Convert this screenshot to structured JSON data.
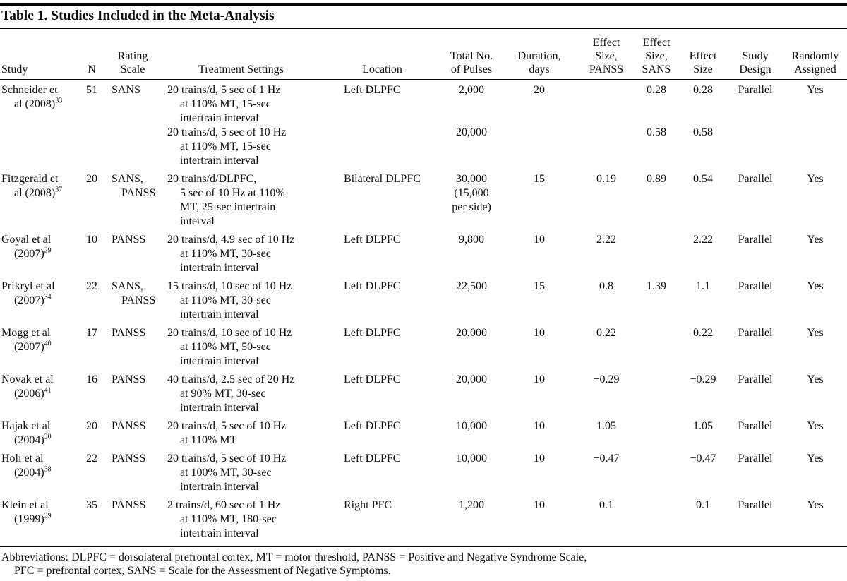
{
  "title": "Table 1. Studies Included in the Meta-Analysis",
  "columns": [
    {
      "key": "study",
      "label_lines": [
        "Study"
      ]
    },
    {
      "key": "n",
      "label_lines": [
        "N"
      ]
    },
    {
      "key": "scale",
      "label_lines": [
        "Rating",
        "Scale"
      ]
    },
    {
      "key": "settings",
      "label_lines": [
        "Treatment Settings"
      ]
    },
    {
      "key": "location",
      "label_lines": [
        "Location"
      ]
    },
    {
      "key": "pulses",
      "label_lines": [
        "Total No.",
        "of Pulses"
      ]
    },
    {
      "key": "duration",
      "label_lines": [
        "Duration,",
        "days"
      ]
    },
    {
      "key": "es_panss",
      "label_lines": [
        "Effect",
        "Size,",
        "PANSS"
      ]
    },
    {
      "key": "es_sans",
      "label_lines": [
        "Effect",
        "Size,",
        "SANS"
      ]
    },
    {
      "key": "es",
      "label_lines": [
        "Effect",
        "Size"
      ]
    },
    {
      "key": "design",
      "label_lines": [
        "Study",
        "Design"
      ]
    },
    {
      "key": "assigned",
      "label_lines": [
        "Randomly",
        "Assigned"
      ]
    }
  ],
  "rows": [
    {
      "study": [
        "Schneider et",
        "al (2008)"
      ],
      "ref": "33",
      "n": "51",
      "scale": [
        "SANS"
      ],
      "settings": [
        "20 trains/d, 5 sec of 1 Hz",
        "at 110% MT, 15-sec",
        "intertrain interval"
      ],
      "location": "Left DLPFC",
      "pulses": [
        "2,000"
      ],
      "duration": "20",
      "es_panss": "",
      "es_sans": "0.28",
      "es": "0.28",
      "design": "Parallel",
      "assigned": "Yes",
      "tight": true
    },
    {
      "study": [],
      "ref": "",
      "n": "",
      "scale": [],
      "settings": [
        "20 trains/d, 5 sec of 10 Hz",
        "at 110% MT, 15-sec",
        "intertrain interval"
      ],
      "location": "",
      "pulses": [
        "20,000"
      ],
      "duration": "",
      "es_panss": "",
      "es_sans": "0.58",
      "es": "0.58",
      "design": "",
      "assigned": ""
    },
    {
      "study": [
        "Fitzgerald et",
        "al (2008)"
      ],
      "ref": "37",
      "n": "20",
      "scale": [
        "SANS,",
        "PANSS"
      ],
      "settings": [
        "20 trains/d/DLPFC,",
        "5 sec of 10 Hz at 110%",
        "MT, 25-sec intertrain",
        "interval"
      ],
      "location": "Bilateral DLPFC",
      "pulses": [
        "30,000",
        "(15,000",
        "per side)"
      ],
      "duration": "15",
      "es_panss": "0.19",
      "es_sans": "0.89",
      "es": "0.54",
      "design": "Parallel",
      "assigned": "Yes"
    },
    {
      "study": [
        "Goyal et al",
        "(2007)"
      ],
      "ref": "29",
      "n": "10",
      "scale": [
        "PANSS"
      ],
      "settings": [
        "20 trains/d, 4.9 sec of 10 Hz",
        "at 110% MT, 30-sec",
        "intertrain interval"
      ],
      "location": "Left DLPFC",
      "pulses": [
        "9,800"
      ],
      "duration": "10",
      "es_panss": "2.22",
      "es_sans": "",
      "es": "2.22",
      "design": "Parallel",
      "assigned": "Yes"
    },
    {
      "study": [
        "Prikryl et al",
        "(2007)"
      ],
      "ref": "34",
      "n": "22",
      "scale": [
        "SANS,",
        "PANSS"
      ],
      "settings": [
        "15 trains/d, 10 sec of 10 Hz",
        "at 110% MT, 30-sec",
        "intertrain interval"
      ],
      "location": "Left DLPFC",
      "pulses": [
        "22,500"
      ],
      "duration": "15",
      "es_panss": "0.8",
      "es_sans": "1.39",
      "es": "1.1",
      "design": "Parallel",
      "assigned": "Yes"
    },
    {
      "study": [
        "Mogg et al",
        "(2007)"
      ],
      "ref": "40",
      "n": "17",
      "scale": [
        "PANSS"
      ],
      "settings": [
        "20 trains/d, 10 sec of 10 Hz",
        "at 110% MT, 50-sec",
        "intertrain interval"
      ],
      "location": "Left DLPFC",
      "pulses": [
        "20,000"
      ],
      "duration": "10",
      "es_panss": "0.22",
      "es_sans": "",
      "es": "0.22",
      "design": "Parallel",
      "assigned": "Yes"
    },
    {
      "study": [
        "Novak et al",
        "(2006)"
      ],
      "ref": "41",
      "n": "16",
      "scale": [
        "PANSS"
      ],
      "settings": [
        "40 trains/d, 2.5 sec of 20 Hz",
        "at 90% MT, 30-sec",
        "intertrain interval"
      ],
      "location": "Left DLPFC",
      "pulses": [
        "20,000"
      ],
      "duration": "10",
      "es_panss": "−0.29",
      "es_sans": "",
      "es": "−0.29",
      "design": "Parallel",
      "assigned": "Yes"
    },
    {
      "study": [
        "Hajak et al",
        "(2004)"
      ],
      "ref": "30",
      "n": "20",
      "scale": [
        "PANSS"
      ],
      "settings": [
        "20 trains/d, 5 sec of 10 Hz",
        "at 110% MT"
      ],
      "location": "Left DLPFC",
      "pulses": [
        "10,000"
      ],
      "duration": "10",
      "es_panss": "1.05",
      "es_sans": "",
      "es": "1.05",
      "design": "Parallel",
      "assigned": "Yes"
    },
    {
      "study": [
        "Holi et al",
        "(2004)"
      ],
      "ref": "38",
      "n": "22",
      "scale": [
        "PANSS"
      ],
      "settings": [
        "20 trains/d, 5 sec of 10 Hz",
        "at 100% MT, 30-sec",
        "intertrain interval"
      ],
      "location": "Left DLPFC",
      "pulses": [
        "10,000"
      ],
      "duration": "10",
      "es_panss": "−0.47",
      "es_sans": "",
      "es": "−0.47",
      "design": "Parallel",
      "assigned": "Yes"
    },
    {
      "study": [
        "Klein et al",
        "(1999)"
      ],
      "ref": "39",
      "n": "35",
      "scale": [
        "PANSS"
      ],
      "settings": [
        "2 trains/d, 60 sec of 1 Hz",
        "at 110% MT, 180-sec",
        "intertrain interval"
      ],
      "location": "Right PFC",
      "pulses": [
        "1,200"
      ],
      "duration": "10",
      "es_panss": "0.1",
      "es_sans": "",
      "es": "0.1",
      "design": "Parallel",
      "assigned": "Yes"
    }
  ],
  "footnote_lines": [
    "Abbreviations: DLPFC = dorsolateral prefrontal cortex, MT = motor threshold, PANSS = Positive and Negative Syndrome Scale,",
    "PFC = prefrontal cortex, SANS = Scale for the Assessment of Negative Symptoms."
  ]
}
